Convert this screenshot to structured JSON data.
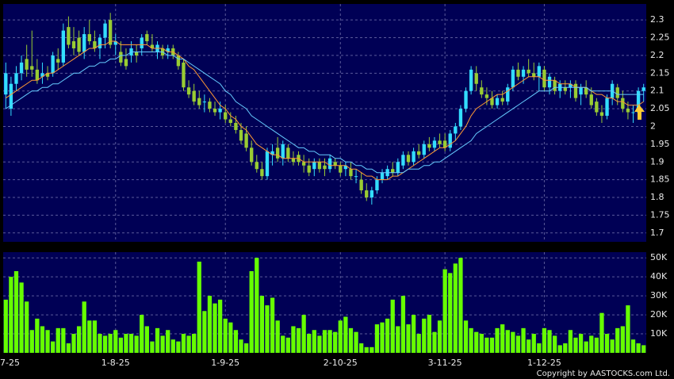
{
  "chart_data": {
    "type": "candlestick",
    "categories": [
      "7-25",
      null,
      null,
      null,
      null,
      null,
      null,
      null,
      null,
      null,
      null,
      null,
      null,
      null,
      null,
      null,
      null,
      null,
      null,
      null,
      null,
      "1-8-25",
      null,
      null,
      null,
      null,
      null,
      null,
      null,
      null,
      null,
      null,
      null,
      null,
      null,
      null,
      null,
      null,
      null,
      null,
      null,
      null,
      "1-9-25",
      null,
      null,
      null,
      null,
      null,
      null,
      null,
      null,
      null,
      null,
      null,
      null,
      null,
      null,
      null,
      null,
      null,
      null,
      null,
      null,
      null,
      "2-10-25",
      null,
      null,
      null,
      null,
      null,
      null,
      null,
      null,
      null,
      null,
      null,
      null,
      null,
      null,
      null,
      null,
      null,
      null,
      null,
      "3-11-25",
      null,
      null,
      null,
      null,
      null,
      null,
      null,
      null,
      null,
      null,
      null,
      null,
      null,
      null,
      null,
      null,
      null,
      null,
      "1-12-25",
      null,
      null,
      null,
      null,
      null,
      null,
      null,
      null,
      null,
      null,
      null,
      null,
      null,
      null,
      null,
      null,
      null,
      null,
      null
    ],
    "ohlc": [
      [
        2.09,
        2.18,
        2.05,
        2.15
      ],
      [
        2.05,
        2.14,
        2.03,
        2.12
      ],
      [
        2.12,
        2.17,
        2.1,
        2.15
      ],
      [
        2.15,
        2.2,
        2.13,
        2.18
      ],
      [
        2.19,
        2.23,
        2.14,
        2.16
      ],
      [
        2.17,
        2.27,
        2.14,
        2.16
      ],
      [
        2.16,
        2.19,
        2.12,
        2.13
      ],
      [
        2.14,
        2.18,
        2.12,
        2.15
      ],
      [
        2.15,
        2.17,
        2.13,
        2.14
      ],
      [
        2.15,
        2.21,
        2.14,
        2.2
      ],
      [
        2.19,
        2.22,
        2.16,
        2.18
      ],
      [
        2.18,
        2.29,
        2.17,
        2.27
      ],
      [
        2.28,
        2.31,
        2.22,
        2.23
      ],
      [
        2.24,
        2.28,
        2.2,
        2.22
      ],
      [
        2.25,
        2.27,
        2.2,
        2.21
      ],
      [
        2.21,
        2.28,
        2.19,
        2.26
      ],
      [
        2.26,
        2.3,
        2.23,
        2.24
      ],
      [
        2.24,
        2.27,
        2.21,
        2.22
      ],
      [
        2.22,
        2.26,
        2.19,
        2.25
      ],
      [
        2.25,
        2.3,
        2.22,
        2.29
      ],
      [
        2.3,
        2.32,
        2.22,
        2.23
      ],
      [
        2.23,
        2.26,
        2.2,
        2.24
      ],
      [
        2.21,
        2.24,
        2.17,
        2.18
      ],
      [
        2.19,
        2.22,
        2.16,
        2.17
      ],
      [
        2.2,
        2.24,
        2.18,
        2.22
      ],
      [
        2.21,
        2.23,
        2.18,
        2.2
      ],
      [
        2.22,
        2.26,
        2.2,
        2.25
      ],
      [
        2.26,
        2.27,
        2.23,
        2.24
      ],
      [
        2.23,
        2.26,
        2.21,
        2.22
      ],
      [
        2.21,
        2.24,
        2.19,
        2.23
      ],
      [
        2.22,
        2.23,
        2.19,
        2.2
      ],
      [
        2.21,
        2.23,
        2.19,
        2.22
      ],
      [
        2.22,
        2.23,
        2.19,
        2.2
      ],
      [
        2.2,
        2.21,
        2.16,
        2.17
      ],
      [
        2.18,
        2.19,
        2.1,
        2.11
      ],
      [
        2.11,
        2.13,
        2.08,
        2.09
      ],
      [
        2.1,
        2.12,
        2.06,
        2.07
      ],
      [
        2.08,
        2.1,
        2.05,
        2.06
      ],
      [
        2.07,
        2.09,
        2.04,
        2.07
      ],
      [
        2.07,
        2.08,
        2.04,
        2.05
      ],
      [
        2.05,
        2.07,
        2.03,
        2.04
      ],
      [
        2.04,
        2.07,
        2.02,
        2.05
      ],
      [
        2.04,
        2.06,
        2.01,
        2.02
      ],
      [
        2.02,
        2.04,
        2.0,
        2.01
      ],
      [
        2.01,
        2.03,
        1.98,
        1.99
      ],
      [
        1.99,
        2.01,
        1.95,
        1.96
      ],
      [
        1.98,
        2.0,
        1.93,
        1.94
      ],
      [
        1.94,
        1.96,
        1.89,
        1.9
      ],
      [
        1.9,
        1.92,
        1.87,
        1.88
      ],
      [
        1.88,
        1.9,
        1.85,
        1.86
      ],
      [
        1.86,
        1.94,
        1.85,
        1.93
      ],
      [
        1.92,
        1.95,
        1.89,
        1.93
      ],
      [
        1.94,
        1.97,
        1.9,
        1.91
      ],
      [
        1.91,
        1.96,
        1.89,
        1.95
      ],
      [
        1.94,
        1.95,
        1.9,
        1.91
      ],
      [
        1.91,
        1.93,
        1.89,
        1.9
      ],
      [
        1.92,
        1.93,
        1.89,
        1.9
      ],
      [
        1.9,
        1.92,
        1.87,
        1.89
      ],
      [
        1.89,
        1.91,
        1.86,
        1.87
      ],
      [
        1.88,
        1.91,
        1.86,
        1.9
      ],
      [
        1.9,
        1.91,
        1.87,
        1.88
      ],
      [
        1.89,
        1.91,
        1.86,
        1.88
      ],
      [
        1.88,
        1.92,
        1.87,
        1.91
      ],
      [
        1.9,
        1.91,
        1.88,
        1.89
      ],
      [
        1.89,
        1.9,
        1.86,
        1.87
      ],
      [
        1.88,
        1.9,
        1.86,
        1.89
      ],
      [
        1.88,
        1.9,
        1.85,
        1.86
      ],
      [
        1.86,
        1.88,
        1.84,
        1.86
      ],
      [
        1.85,
        1.87,
        1.81,
        1.82
      ],
      [
        1.82,
        1.84,
        1.79,
        1.8
      ],
      [
        1.8,
        1.83,
        1.78,
        1.82
      ],
      [
        1.82,
        1.86,
        1.81,
        1.85
      ],
      [
        1.85,
        1.88,
        1.84,
        1.87
      ],
      [
        1.86,
        1.89,
        1.85,
        1.88
      ],
      [
        1.88,
        1.9,
        1.86,
        1.87
      ],
      [
        1.87,
        1.91,
        1.86,
        1.9
      ],
      [
        1.89,
        1.93,
        1.88,
        1.92
      ],
      [
        1.92,
        1.93,
        1.89,
        1.9
      ],
      [
        1.9,
        1.94,
        1.89,
        1.93
      ],
      [
        1.93,
        1.95,
        1.91,
        1.92
      ],
      [
        1.92,
        1.96,
        1.91,
        1.95
      ],
      [
        1.95,
        1.97,
        1.93,
        1.94
      ],
      [
        1.94,
        1.97,
        1.93,
        1.96
      ],
      [
        1.96,
        1.98,
        1.94,
        1.95
      ],
      [
        1.96,
        1.98,
        1.93,
        1.94
      ],
      [
        1.94,
        1.99,
        1.93,
        1.98
      ],
      [
        1.98,
        2.01,
        1.96,
        2.0
      ],
      [
        2.0,
        2.06,
        1.99,
        2.05
      ],
      [
        2.05,
        2.11,
        2.04,
        2.1
      ],
      [
        2.1,
        2.17,
        2.09,
        2.16
      ],
      [
        2.15,
        2.17,
        2.1,
        2.12
      ],
      [
        2.11,
        2.13,
        2.08,
        2.09
      ],
      [
        2.09,
        2.11,
        2.06,
        2.08
      ],
      [
        2.08,
        2.1,
        2.05,
        2.06
      ],
      [
        2.06,
        2.09,
        2.05,
        2.08
      ],
      [
        2.08,
        2.1,
        2.06,
        2.07
      ],
      [
        2.07,
        2.12,
        2.06,
        2.11
      ],
      [
        2.11,
        2.17,
        2.1,
        2.16
      ],
      [
        2.16,
        2.18,
        2.13,
        2.14
      ],
      [
        2.14,
        2.17,
        2.12,
        2.16
      ],
      [
        2.16,
        2.19,
        2.14,
        2.15
      ],
      [
        2.15,
        2.18,
        2.13,
        2.14
      ],
      [
        2.14,
        2.18,
        2.1,
        2.17
      ],
      [
        2.16,
        2.17,
        2.1,
        2.11
      ],
      [
        2.11,
        2.15,
        2.09,
        2.14
      ],
      [
        2.13,
        2.14,
        2.09,
        2.1
      ],
      [
        2.1,
        2.13,
        2.08,
        2.12
      ],
      [
        2.11,
        2.13,
        2.09,
        2.1
      ],
      [
        2.11,
        2.13,
        2.08,
        2.12
      ],
      [
        2.12,
        2.13,
        2.07,
        2.08
      ],
      [
        2.09,
        2.12,
        2.06,
        2.11
      ],
      [
        2.11,
        2.13,
        2.08,
        2.09
      ],
      [
        2.09,
        2.11,
        2.05,
        2.06
      ],
      [
        2.07,
        2.08,
        2.03,
        2.04
      ],
      [
        2.04,
        2.06,
        2.01,
        2.03
      ],
      [
        2.03,
        2.09,
        2.02,
        2.08
      ],
      [
        2.08,
        2.13,
        2.06,
        2.12
      ],
      [
        2.11,
        2.12,
        2.06,
        2.08
      ],
      [
        2.08,
        2.1,
        2.04,
        2.05
      ],
      [
        2.05,
        2.07,
        2.02,
        2.04
      ],
      [
        2.04,
        2.06,
        2.01,
        2.04
      ],
      [
        2.04,
        2.11,
        2.03,
        2.1
      ],
      [
        2.1,
        2.12,
        2.07,
        2.11
      ]
    ],
    "up_color": "#33ddff",
    "down_color": "#99cc33",
    "series": [
      {
        "color": "#ff9933",
        "values": [
          2.08,
          2.09,
          2.1,
          2.11,
          2.12,
          2.13,
          2.13,
          2.14,
          2.15,
          2.15,
          2.16,
          2.17,
          2.18,
          2.19,
          2.2,
          2.21,
          2.22,
          2.22,
          2.23,
          2.23,
          2.24,
          2.24,
          2.23,
          2.23,
          2.23,
          2.23,
          2.23,
          2.23,
          2.22,
          2.22,
          2.22,
          2.21,
          2.21,
          2.2,
          2.19,
          2.17,
          2.16,
          2.14,
          2.12,
          2.1,
          2.08,
          2.06,
          2.05,
          2.03,
          2.02,
          2.0,
          1.99,
          1.97,
          1.95,
          1.94,
          1.93,
          1.92,
          1.92,
          1.91,
          1.91,
          1.91,
          1.91,
          1.9,
          1.9,
          1.9,
          1.9,
          1.9,
          1.89,
          1.89,
          1.89,
          1.89,
          1.88,
          1.88,
          1.87,
          1.86,
          1.86,
          1.85,
          1.85,
          1.85,
          1.86,
          1.86,
          1.87,
          1.88,
          1.89,
          1.9,
          1.91,
          1.92,
          1.93,
          1.94,
          1.94,
          1.95,
          1.96,
          1.98,
          2.0,
          2.03,
          2.05,
          2.06,
          2.07,
          2.08,
          2.09,
          2.09,
          2.1,
          2.11,
          2.12,
          2.13,
          2.14,
          2.14,
          2.14,
          2.13,
          2.13,
          2.13,
          2.12,
          2.12,
          2.12,
          2.11,
          2.11,
          2.11,
          2.1,
          2.09,
          2.09,
          2.08,
          2.08,
          2.07,
          2.07,
          2.06,
          2.06,
          2.06,
          2.07
        ]
      },
      {
        "color": "#66ccff",
        "values": [
          2.05,
          2.06,
          2.07,
          2.08,
          2.09,
          2.1,
          2.1,
          2.11,
          2.11,
          2.12,
          2.12,
          2.13,
          2.14,
          2.15,
          2.15,
          2.16,
          2.17,
          2.17,
          2.18,
          2.18,
          2.19,
          2.19,
          2.2,
          2.2,
          2.21,
          2.21,
          2.21,
          2.21,
          2.21,
          2.21,
          2.21,
          2.2,
          2.2,
          2.19,
          2.19,
          2.18,
          2.17,
          2.16,
          2.15,
          2.14,
          2.13,
          2.12,
          2.1,
          2.09,
          2.07,
          2.06,
          2.05,
          2.03,
          2.02,
          2.01,
          2.0,
          1.99,
          1.98,
          1.97,
          1.96,
          1.95,
          1.94,
          1.94,
          1.93,
          1.93,
          1.92,
          1.92,
          1.92,
          1.91,
          1.91,
          1.9,
          1.9,
          1.89,
          1.89,
          1.88,
          1.88,
          1.87,
          1.87,
          1.87,
          1.87,
          1.87,
          1.87,
          1.88,
          1.88,
          1.88,
          1.89,
          1.89,
          1.9,
          1.9,
          1.91,
          1.92,
          1.93,
          1.94,
          1.95,
          1.96,
          1.98,
          1.99,
          2.0,
          2.01,
          2.02,
          2.03,
          2.04,
          2.05,
          2.06,
          2.07,
          2.08,
          2.09,
          2.1,
          2.1,
          2.1,
          2.11,
          2.11,
          2.11,
          2.11,
          2.11,
          2.11,
          2.11,
          2.1,
          2.1,
          2.1,
          2.1,
          2.1,
          2.09,
          2.09,
          2.09,
          2.09,
          2.09,
          2.09
        ]
      }
    ],
    "ylim": [
      1.675,
      2.345
    ],
    "yticks": [
      1.7,
      1.75,
      1.8,
      1.85,
      1.9,
      1.95,
      2,
      2.05,
      2.1,
      2.15,
      2.2,
      2.25,
      2.3
    ],
    "grid": true,
    "volume": {
      "color": "#66ff00",
      "values": [
        28000,
        40000,
        43000,
        37000,
        27000,
        12000,
        18000,
        14000,
        12000,
        6000,
        13000,
        13000,
        5000,
        10000,
        14000,
        27000,
        17000,
        17000,
        10000,
        9000,
        10000,
        12000,
        8000,
        10000,
        10000,
        9000,
        20000,
        14000,
        6000,
        13000,
        9000,
        12000,
        7000,
        6000,
        10000,
        9000,
        10000,
        48000,
        22000,
        30000,
        26000,
        28000,
        18000,
        16000,
        12000,
        7000,
        5000,
        43000,
        50000,
        30000,
        25000,
        29000,
        17000,
        9000,
        8000,
        14000,
        13000,
        20000,
        10000,
        12000,
        9000,
        12000,
        12000,
        11000,
        17000,
        19000,
        13000,
        11000,
        5000,
        3000,
        3000,
        15000,
        16000,
        18000,
        28000,
        14000,
        30000,
        15000,
        20000,
        10000,
        18000,
        20000,
        11000,
        17000,
        44000,
        42000,
        47000,
        50000,
        17000,
        13000,
        11000,
        10000,
        8000,
        8000,
        13000,
        15000,
        12000,
        11000,
        9000,
        13000,
        7000,
        10000,
        5000,
        13000,
        12000,
        9000,
        4000,
        5000,
        12000,
        8000,
        10000,
        6000,
        9000,
        8000,
        21000,
        10000,
        7000,
        13000,
        14000,
        25000,
        7000,
        5000,
        4000
      ],
      "ylim": [
        0,
        53000
      ],
      "yticks": [
        {
          "value": 10000,
          "label": "10K"
        },
        {
          "value": 20000,
          "label": "20K"
        },
        {
          "value": 30000,
          "label": "30K"
        },
        {
          "value": 40000,
          "label": "40K"
        },
        {
          "value": 50000,
          "label": "50K"
        }
      ]
    },
    "footer": "Copyright by AASTOCKS.com Ltd."
  }
}
